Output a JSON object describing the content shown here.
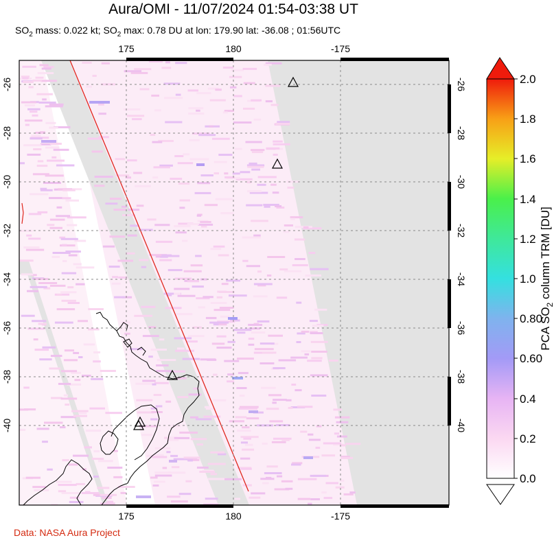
{
  "title": "Aura/OMI - 11/07/2024 01:54-03:38 UT",
  "subtitle": {
    "so2_a": "SO",
    "sub_a": "2",
    "mass_text": " mass: 0.022 kt; SO",
    "sub_b": "2",
    "max_text": " max: 0.78 DU at lon: 179.90 lat: -36.08 ; 01:56UTC"
  },
  "credit": "Data: NASA Aura Project",
  "map": {
    "lon_ticks": [
      "175",
      "180",
      "-175"
    ],
    "lat_ticks": [
      "-26",
      "-28",
      "-30",
      "-32",
      "-34",
      "-36",
      "-38",
      "-40"
    ],
    "volcano_icon": "triangle-volcano-icon",
    "colors": {
      "no_data": "#e3e3e3",
      "swath_edge": "#e0271d",
      "grid": "#8a8a8a",
      "coast": "#000000"
    }
  },
  "colorbar": {
    "label_main": "PCA SO",
    "label_sub": "2",
    "label_end": " column TRM [DU]",
    "ticks": [
      "2.0",
      "1.8",
      "1.6",
      "1.4",
      "1.2",
      "1.0",
      "0.80",
      "0.60",
      "0.4",
      "0.2",
      "0.0"
    ],
    "min": 0.0,
    "max": 2.0
  }
}
